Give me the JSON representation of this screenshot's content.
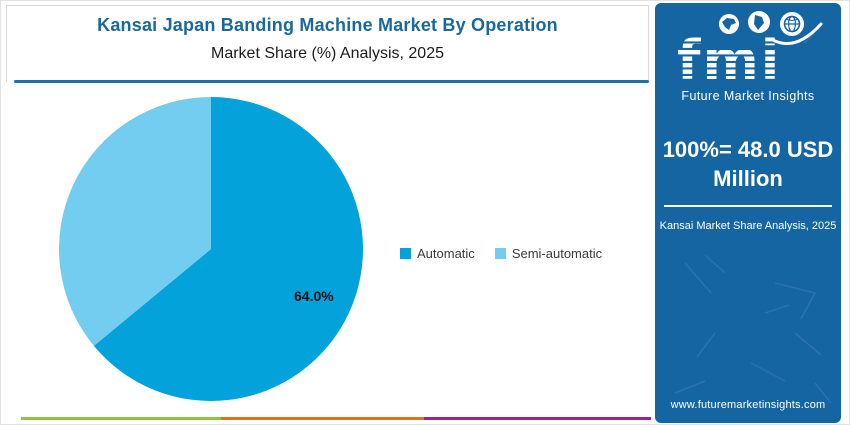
{
  "header": {
    "title": "Kansai Japan Banding Machine Market By Operation",
    "subtitle": "Market Share (%) Analysis, 2025",
    "title_color": "#19689E",
    "underline_color": "#1C6FA8"
  },
  "chart_data": {
    "type": "pie",
    "title": "Kansai Japan Banding Machine Market By Operation",
    "subtitle": "Market Share (%) Analysis, 2025",
    "start_angle_deg": 0,
    "direction": "clockwise",
    "slices": [
      {
        "name": "Automatic",
        "value": 64.0,
        "label": "64.0%",
        "color": "#04A2DB"
      },
      {
        "name": "Semi-automatic",
        "value": 36.0,
        "label": "",
        "color": "#72CDF0"
      }
    ],
    "legend_position": "right-middle",
    "total_note": "100%= 48.0 USD Million"
  },
  "sidebar": {
    "bg_color": "#1565A3",
    "logo": {
      "text": "fmi",
      "tagline": "Future Market Insights",
      "icons": [
        "north-america-map",
        "south-america-map",
        "globe"
      ]
    },
    "headline_line1": "100%= 48.0 USD",
    "headline_line2": "Million",
    "caption": "Kansai Market Share Analysis, 2025",
    "website": "www.futuremarketinsights.com"
  },
  "footer": {
    "bars": [
      {
        "name": "green",
        "color": "#8CC63F"
      },
      {
        "name": "orange",
        "color": "#E2711D"
      },
      {
        "name": "purple",
        "color": "#93278F"
      }
    ]
  }
}
